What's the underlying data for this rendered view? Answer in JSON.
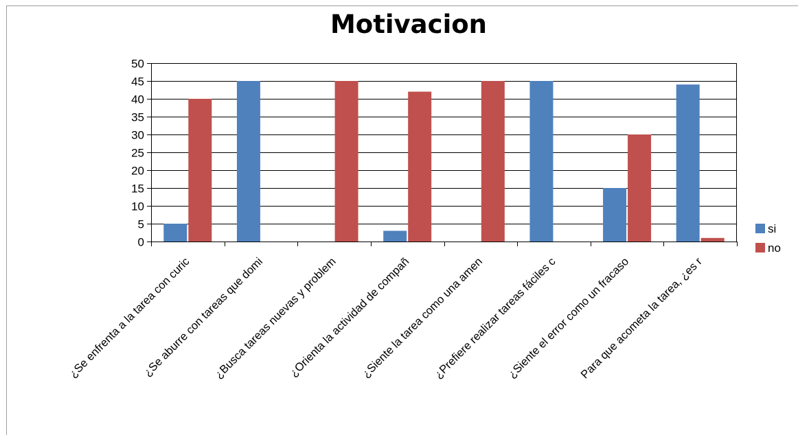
{
  "chart_data": {
    "type": "bar",
    "title": "Motivacion",
    "categories": [
      "¿Se enfrenta a la tarea con curic",
      "¿Se aburre con tareas que domi",
      "¿Busca tareas nuevas y problem",
      "¿Orienta la actividad de compañ",
      "¿Siente la tarea como una amen",
      "¿Prefiere realizar tareas fáciles c",
      "¿Siente el error como un fracaso",
      "Para que acometa la tarea, ¿es r"
    ],
    "series": [
      {
        "name": "si",
        "color": "#4f81bd",
        "values": [
          5,
          45,
          0,
          3,
          0,
          45,
          15,
          44
        ]
      },
      {
        "name": "no",
        "color": "#c0504d",
        "values": [
          40,
          0,
          45,
          42,
          45,
          0,
          30,
          1
        ]
      }
    ],
    "ylim": [
      0,
      50
    ],
    "yticks": [
      0,
      5,
      10,
      15,
      20,
      25,
      30,
      35,
      40,
      45,
      50
    ],
    "grid": true,
    "legend_position": "right"
  }
}
